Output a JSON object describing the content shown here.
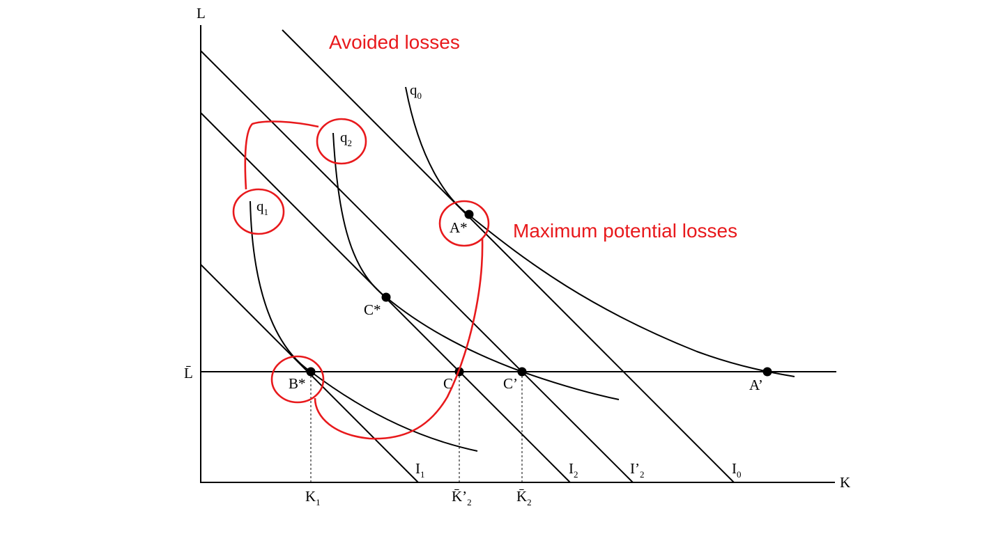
{
  "axes": {
    "y_label": "L",
    "x_label": "K",
    "lbar_label": "L̄"
  },
  "isoquants": [
    {
      "id": "q0",
      "base": "q",
      "sub": "0"
    },
    {
      "id": "q1",
      "base": "q",
      "sub": "1"
    },
    {
      "id": "q2",
      "base": "q",
      "sub": "2"
    }
  ],
  "isocost_lines": [
    {
      "id": "I1",
      "base": "I",
      "sub": "1"
    },
    {
      "id": "I2",
      "base": "I",
      "sub": "2"
    },
    {
      "id": "I2prime",
      "base": "I’",
      "sub": "2"
    },
    {
      "id": "I0",
      "base": "I",
      "sub": "0"
    }
  ],
  "points": [
    {
      "id": "A-star",
      "label": "A*"
    },
    {
      "id": "C-star",
      "label": "C*"
    },
    {
      "id": "B-star",
      "label": "B*"
    },
    {
      "id": "C",
      "label": "C"
    },
    {
      "id": "C-prime",
      "label": "C’"
    },
    {
      "id": "A-prime",
      "label": "A’"
    }
  ],
  "k_ticks": [
    {
      "id": "K1",
      "base": "K",
      "sub": "1"
    },
    {
      "id": "K2prime-bar",
      "base": "K̄’",
      "sub": "2"
    },
    {
      "id": "K2-bar",
      "base": "K̄",
      "sub": "2"
    }
  ],
  "annotations": {
    "avoided_losses": "Avoided losses",
    "maximum_potential_losses": "Maximum potential losses"
  },
  "colors": {
    "ink": "#000000",
    "annotation": "#e8191c"
  }
}
